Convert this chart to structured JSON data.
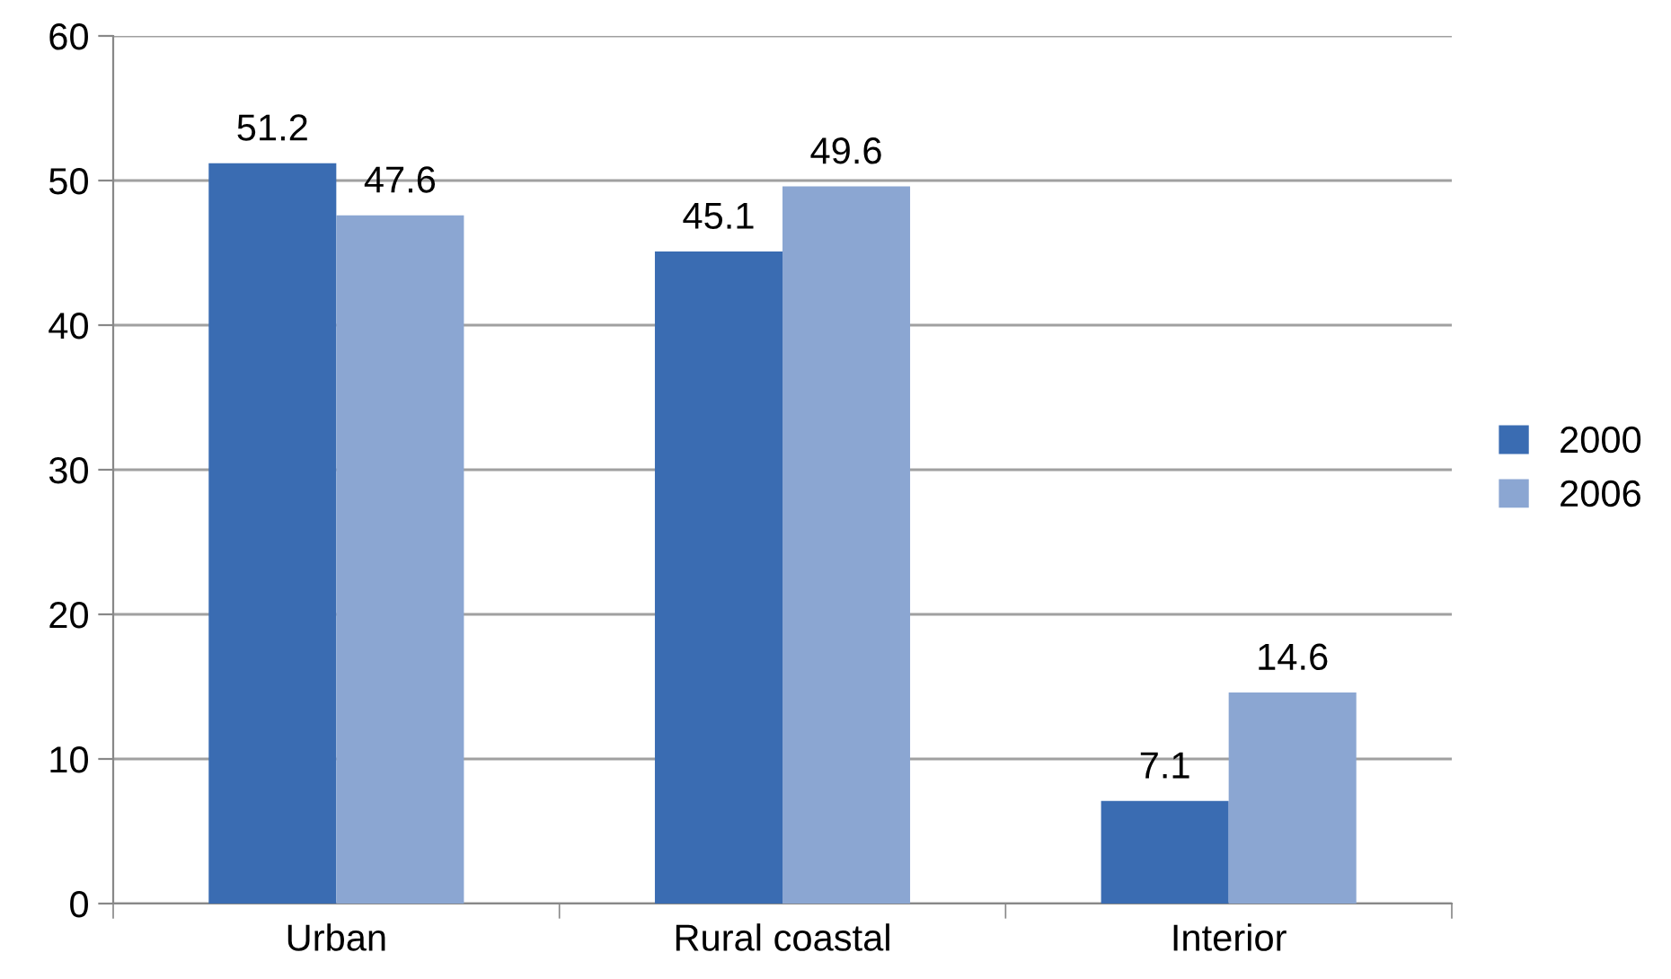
{
  "chart_data": {
    "type": "bar",
    "categories": [
      "Urban",
      "Rural coastal",
      "Interior"
    ],
    "series": [
      {
        "name": "2000",
        "color": "#3a6cb2",
        "values": [
          51.2,
          45.1,
          7.1
        ]
      },
      {
        "name": "2006",
        "color": "#8ba6d2",
        "values": [
          47.6,
          49.6,
          14.6
        ]
      }
    ],
    "ylim": [
      0,
      60
    ],
    "yticks": [
      0,
      10,
      20,
      30,
      40,
      50,
      60
    ],
    "grid": "y",
    "legend": "right",
    "data_labels": true
  }
}
